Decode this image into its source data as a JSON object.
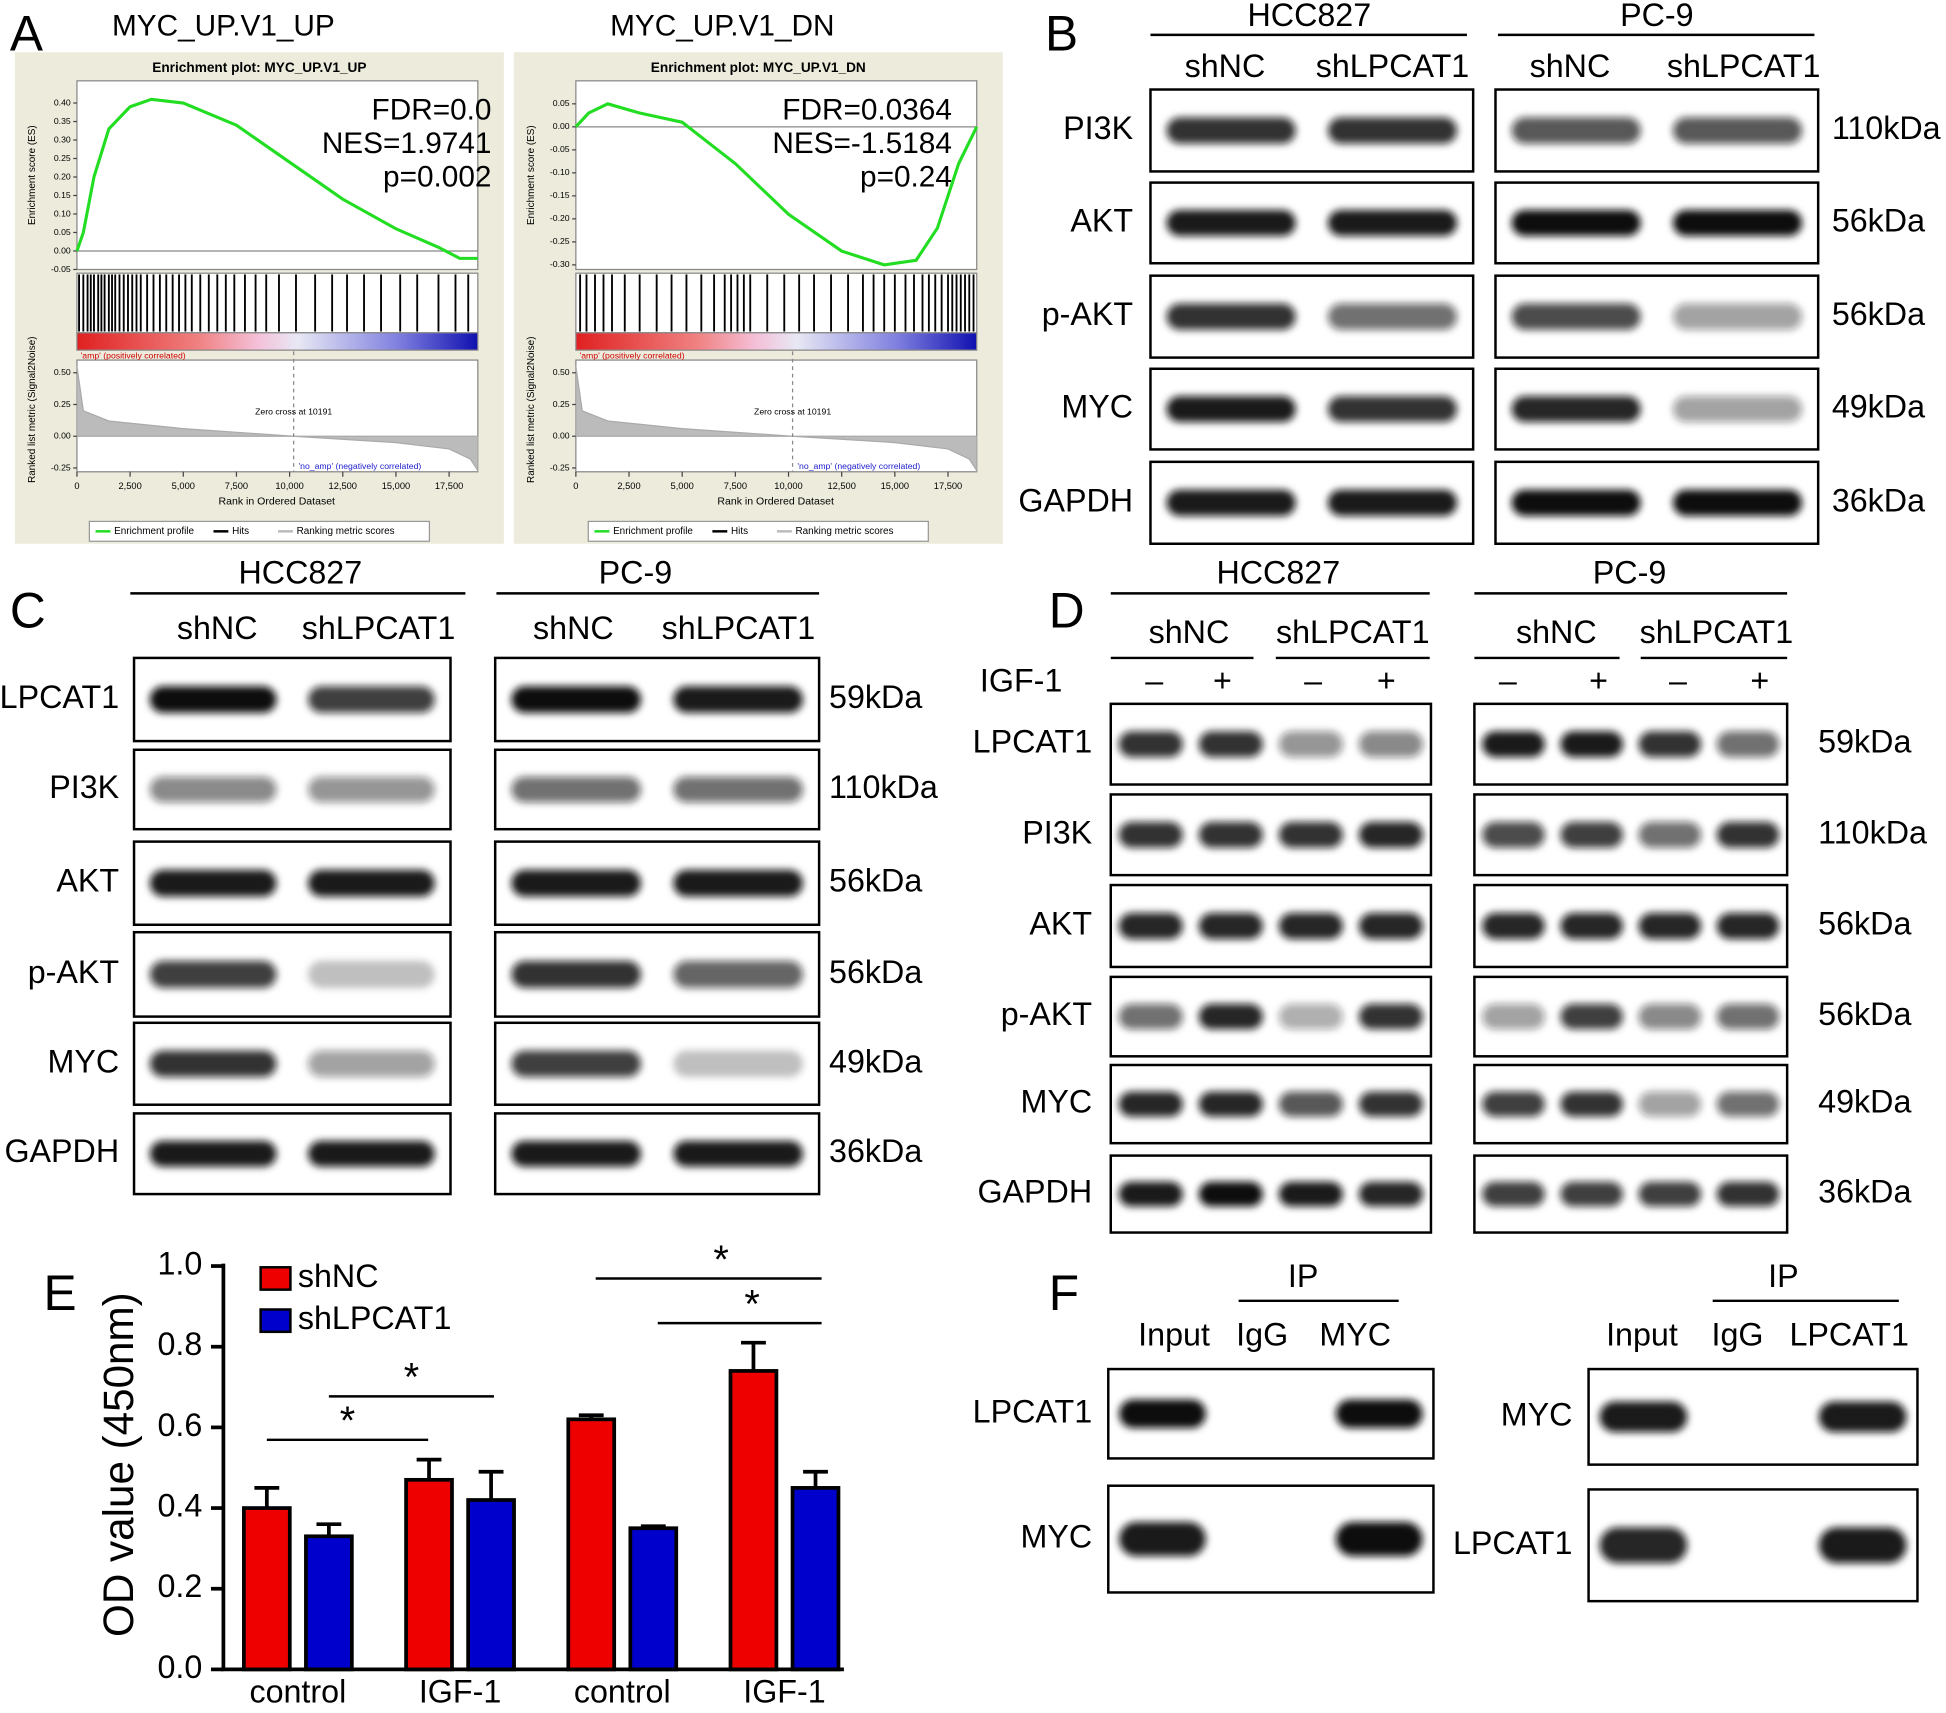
{
  "panels": {
    "A": {
      "label": "A",
      "xlim": [
        0,
        18850
      ],
      "x_axis": {
        "label": "Rank in Ordered Dataset",
        "ticks": [
          0,
          {
            "value": 2500,
            "label": "2,500"
          },
          {
            "value": 5000,
            "label": "5,000"
          },
          {
            "value": 7500,
            "label": "7,500"
          },
          {
            "value": 10000,
            "label": "10,000"
          },
          {
            "value": 12500,
            "label": "12,500"
          },
          {
            "value": 15000,
            "label": "15,000"
          },
          {
            "value": 17500,
            "label": "17,500"
          }
        ]
      },
      "es_axis_label": "Enrichment score (ES)",
      "metric_axis": {
        "label": "Ranked list metric (Signal2Noise)",
        "ylim": [
          -0.28,
          0.6
        ],
        "ticks": [
          {
            "value": 0.5,
            "label": "0.50"
          },
          0.25,
          {
            "value": 0,
            "label": "0.00"
          },
          -0.25
        ]
      },
      "pos_label": "'amp' (positively correlated)",
      "neg_label": "'no_amp' (negatively correlated)",
      "zero_cross_text": "Zero cross at 10191",
      "zero_cross": 10191,
      "legend": [
        "Enrichment profile",
        "Hits",
        "Ranking metric scores"
      ],
      "metric": {
        "x": [
          0,
          300,
          1500,
          5000,
          10191,
          15000,
          17500,
          18500,
          18850
        ],
        "values": [
          0.55,
          0.2,
          0.12,
          0.06,
          0,
          -0.05,
          -0.1,
          -0.18,
          -0.27
        ]
      },
      "plots": [
        {
          "title": "MYC_UP.V1_UP",
          "plot_title": "Enrichment plot: MYC_UP.V1_UP",
          "stats": [
            "FDR=0.0",
            "NES=1.9741",
            "p=0.002"
          ],
          "es": {
            "ylim": [
              -0.05,
              0.46
            ],
            "ticks": [
              {
                "value": 0.4,
                "label": "0.40"
              },
              0.35,
              {
                "value": 0.3,
                "label": "0.30"
              },
              0.25,
              {
                "value": 0.2,
                "label": "0.20"
              },
              0.15,
              {
                "value": 0.1,
                "label": "0.10"
              },
              0.05,
              {
                "value": 0,
                "label": "0.00"
              },
              -0.05
            ],
            "x": [
              0,
              300,
              800,
              1500,
              2500,
              3500,
              5000,
              7500,
              10000,
              12500,
              15000,
              17000,
              18000,
              18850
            ],
            "values": [
              0,
              0.05,
              0.2,
              0.33,
              0.39,
              0.41,
              0.4,
              0.34,
              0.24,
              0.14,
              0.06,
              0.01,
              -0.02,
              -0.02
            ]
          },
          "hits": [
            100,
            300,
            500,
            650,
            800,
            1000,
            1150,
            1300,
            1500,
            1650,
            1800,
            2000,
            2200,
            2400,
            2600,
            2800,
            3000,
            3300,
            3600,
            3900,
            4200,
            4500,
            4800,
            5100,
            5400,
            5800,
            6200,
            6600,
            7000,
            7400,
            7900,
            8400,
            8900,
            9500,
            10300,
            11200,
            12000,
            12700,
            13500,
            14300,
            15200,
            16000,
            17000,
            17800,
            18400
          ]
        },
        {
          "title": "MYC_UP.V1_DN",
          "plot_title": "Enrichment plot: MYC_UP.V1_DN",
          "stats": [
            "FDR=0.0364",
            "NES=-1.5184",
            "p=0.24"
          ],
          "es": {
            "ylim": [
              -0.31,
              0.1
            ],
            "ticks": [
              0.05,
              {
                "value": 0,
                "label": "0.00"
              },
              -0.05,
              {
                "value": -0.1,
                "label": "-0.10"
              },
              -0.15,
              {
                "value": -0.2,
                "label": "-0.20"
              },
              -0.25,
              {
                "value": -0.3,
                "label": "-0.30"
              }
            ],
            "x": [
              0,
              600,
              1500,
              3000,
              5000,
              7500,
              10000,
              12500,
              14500,
              16000,
              17000,
              18000,
              18850
            ],
            "values": [
              0,
              0.03,
              0.05,
              0.03,
              0.01,
              -0.08,
              -0.19,
              -0.27,
              -0.3,
              -0.29,
              -0.22,
              -0.08,
              0
            ]
          },
          "hits": [
            200,
            500,
            900,
            1300,
            1700,
            2300,
            3000,
            3800,
            4500,
            5200,
            5900,
            6500,
            7000,
            7300,
            7600,
            7900,
            8200,
            9000,
            9800,
            10500,
            11200,
            12000,
            12800,
            13500,
            14000,
            14500,
            15000,
            15500,
            15900,
            16300,
            16600,
            16900,
            17200,
            17500,
            17700,
            17900,
            18100,
            18300,
            18500,
            18700
          ]
        }
      ]
    },
    "B": {
      "label": "B",
      "groups": [
        {
          "name": "HCC827",
          "columns": [
            "shNC",
            "shLPCAT1"
          ]
        },
        {
          "name": "PC-9",
          "columns": [
            "shNC",
            "shLPCAT1"
          ]
        }
      ],
      "rows": [
        "PI3K",
        "AKT",
        "p-AKT",
        "MYC",
        "GAPDH"
      ],
      "sizes": [
        "110kDa",
        "56kDa",
        "56kDa",
        "49kDa",
        "36kDa"
      ]
    },
    "C": {
      "label": "C",
      "groups": [
        {
          "name": "HCC827",
          "columns": [
            "shNC",
            "shLPCAT1"
          ]
        },
        {
          "name": "PC-9",
          "columns": [
            "shNC",
            "shLPCAT1"
          ]
        }
      ],
      "rows": [
        "LPCAT1",
        "PI3K",
        "AKT",
        "p-AKT",
        "MYC",
        "GAPDH"
      ],
      "sizes": [
        "59kDa",
        "110kDa",
        "56kDa",
        "56kDa",
        "49kDa",
        "36kDa"
      ]
    },
    "D": {
      "label": "D",
      "groups": [
        {
          "name": "HCC827",
          "columns": [
            "shNC",
            "shLPCAT1"
          ]
        },
        {
          "name": "PC-9",
          "columns": [
            "shNC",
            "shLPCAT1"
          ]
        }
      ],
      "treatment_label": "IGF-1",
      "treatment": [
        "–",
        "+",
        "–",
        "+"
      ],
      "rows": [
        "LPCAT1",
        "PI3K",
        "AKT",
        "p-AKT",
        "MYC",
        "GAPDH"
      ],
      "sizes": [
        "59kDa",
        "110kDa",
        "56kDa",
        "56kDa",
        "49kDa",
        "36kDa"
      ]
    },
    "E": {
      "label": "E"
    },
    "F": {
      "label": "F",
      "blots": [
        {
          "ip": "IP",
          "columns": [
            "Input",
            "IgG",
            "MYC"
          ],
          "rows": [
            "LPCAT1",
            "MYC"
          ]
        },
        {
          "ip": "IP",
          "columns": [
            "Input",
            "IgG",
            "LPCAT1"
          ],
          "rows": [
            "MYC",
            "LPCAT1"
          ]
        }
      ]
    }
  },
  "chart_data": {
    "type": "bar",
    "categories": [
      "control",
      "IGF-1",
      "control",
      "IGF-1"
    ],
    "series": [
      {
        "name": "shNC",
        "color": "#ee0000",
        "values": [
          0.4,
          0.47,
          0.62,
          0.74
        ],
        "errors": [
          0.05,
          0.05,
          0.01,
          0.07
        ]
      },
      {
        "name": "shLPCAT1",
        "color": "#0000cc",
        "values": [
          0.33,
          0.42,
          0.35,
          0.45
        ],
        "errors": [
          0.03,
          0.07,
          0.005,
          0.04
        ]
      }
    ],
    "ylabel": "OD value (450nm)",
    "ylim": [
      0,
      1
    ],
    "yticks": [
      {
        "value": 0,
        "label": "0.0"
      },
      0.2,
      0.4,
      0.6,
      0.8,
      {
        "value": 1,
        "label": "1.0"
      }
    ],
    "annotations": [
      "*",
      "*",
      "*",
      "*"
    ]
  }
}
